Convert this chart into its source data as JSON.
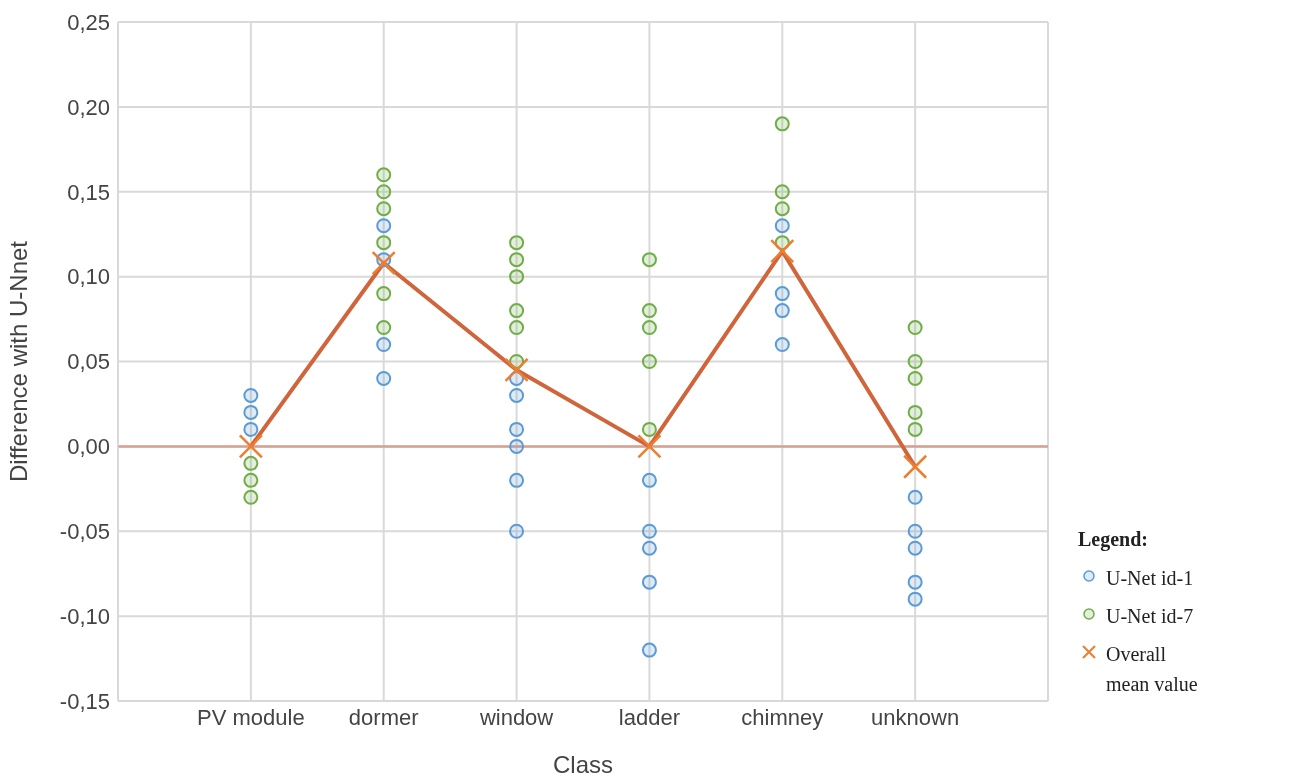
{
  "chart_data": {
    "type": "scatter",
    "xlabel": "Class",
    "ylabel": "Difference with U-Nnet",
    "legend_title": "Legend:",
    "categories": [
      "PV module",
      "dormer",
      "window",
      "ladder",
      "chimney",
      "unknown"
    ],
    "series": [
      {
        "name": "U-Net id-1",
        "color": "#5b9bd5",
        "marker": "circle",
        "x": [
          "PV module",
          "PV module",
          "PV module",
          "dormer",
          "dormer",
          "dormer",
          "dormer",
          "window",
          "window",
          "window",
          "window",
          "window",
          "window",
          "ladder",
          "ladder",
          "ladder",
          "ladder",
          "ladder",
          "chimney",
          "chimney",
          "chimney",
          "chimney",
          "unknown",
          "unknown",
          "unknown",
          "unknown",
          "unknown"
        ],
        "values": [
          0.03,
          0.02,
          0.01,
          0.13,
          0.11,
          0.06,
          0.04,
          0.04,
          0.03,
          0.01,
          0.0,
          -0.02,
          -0.05,
          -0.02,
          -0.05,
          -0.06,
          -0.08,
          -0.12,
          0.13,
          0.09,
          0.08,
          0.06,
          -0.03,
          -0.05,
          -0.06,
          -0.08,
          -0.09
        ]
      },
      {
        "name": "U-Net id-7",
        "color": "#70ad47",
        "marker": "circle",
        "x": [
          "PV module",
          "PV module",
          "PV module",
          "dormer",
          "dormer",
          "dormer",
          "dormer",
          "dormer",
          "dormer",
          "window",
          "window",
          "window",
          "window",
          "window",
          "window",
          "ladder",
          "ladder",
          "ladder",
          "ladder",
          "ladder",
          "chimney",
          "chimney",
          "chimney",
          "chimney",
          "unknown",
          "unknown",
          "unknown",
          "unknown",
          "unknown"
        ],
        "values": [
          -0.01,
          -0.02,
          -0.03,
          0.16,
          0.15,
          0.14,
          0.12,
          0.09,
          0.07,
          0.12,
          0.11,
          0.1,
          0.08,
          0.07,
          0.05,
          0.11,
          0.08,
          0.07,
          0.05,
          0.01,
          0.19,
          0.15,
          0.14,
          0.12,
          0.07,
          0.05,
          0.04,
          0.02,
          0.01
        ]
      },
      {
        "name": "Overall\nmean value",
        "type": "line",
        "color": "#ed7d31",
        "marker": "cross",
        "x": [
          "PV module",
          "dormer",
          "window",
          "ladder",
          "chimney",
          "unknown"
        ],
        "values": [
          0.0,
          0.108,
          0.045,
          0.0,
          0.115,
          -0.012
        ]
      }
    ],
    "ref_lines": [
      {
        "axis": "y",
        "value": 0,
        "color": "#d9a090"
      }
    ],
    "ylim": [
      -0.15,
      0.25
    ],
    "yticks": [
      {
        "value": -0.15,
        "label": "-0,15"
      },
      {
        "value": -0.1,
        "label": "-0,10"
      },
      {
        "value": -0.05,
        "label": "-0,05"
      },
      {
        "value": 0,
        "label": "0,00"
      },
      {
        "value": 0.05,
        "label": "0,05"
      },
      {
        "value": 0.1,
        "label": "0,10"
      },
      {
        "value": 0.15,
        "label": "0,15"
      },
      {
        "value": 0.2,
        "label": "0,20"
      },
      {
        "value": 0.25,
        "label": "0,25"
      }
    ],
    "grid": true,
    "legend": "right"
  }
}
